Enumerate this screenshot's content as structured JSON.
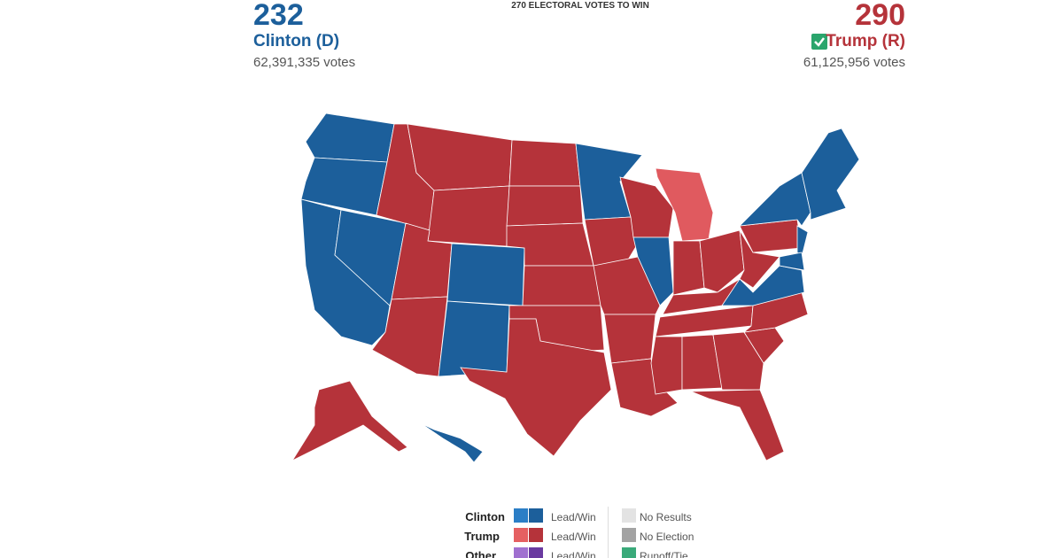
{
  "header": {
    "left": {
      "electoral_votes": 232,
      "candidate": "Clinton (D)",
      "votes": "62,391,335 votes"
    },
    "goal": "270 ELECTORAL VOTES TO WIN",
    "right": {
      "electoral_votes": 290,
      "candidate": "Trump (R)",
      "votes": "61,125,956 votes"
    }
  },
  "legend": {
    "rows": [
      {
        "party": "Clinton",
        "label": "Lead/Win"
      },
      {
        "party": "Trump",
        "label": "Lead/Win"
      },
      {
        "party": "Other",
        "label": "Lead/Win"
      }
    ],
    "status": [
      "No Results",
      "No Election",
      "Runoff/Tie"
    ]
  }
}
